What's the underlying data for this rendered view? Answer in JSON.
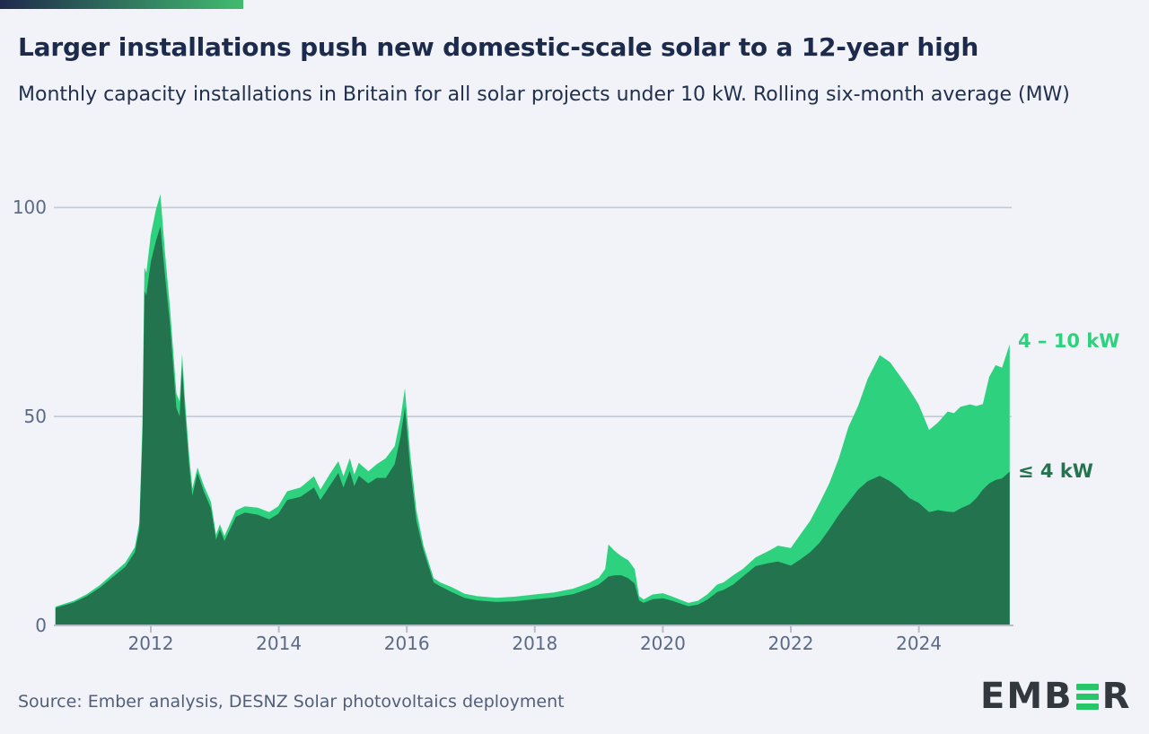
{
  "page": {
    "background_color": "#f1f3f8"
  },
  "header": {
    "accent_bar_gradient": [
      "#1f2a4c",
      "#41bc6f"
    ],
    "title": "Larger installations push new domestic-scale solar to a 12-year high",
    "subtitle": "Monthly capacity installations in Britain for all solar projects under 10 kW. Rolling six-month average (MW)"
  },
  "footer": {
    "source": "Source: Ember analysis, DESNZ Solar photovoltaics deployment",
    "logo": {
      "prefix": "EMB",
      "suffix": "R",
      "bar_e_color": "#25c768",
      "text_color": "#33383e"
    }
  },
  "chart_data": {
    "type": "area",
    "stacked": true,
    "title": "Larger installations push new domestic-scale solar to a 12-year high",
    "subtitle": "Monthly capacity installations in Britain for all solar projects under 10 kW. Rolling six-month average (MW)",
    "unit": "MW",
    "xlabel": "",
    "ylabel": "MW",
    "xlim": [
      2010.51,
      2025.42
    ],
    "ylim": [
      0,
      105
    ],
    "x_ticks": [
      "2012",
      "2014",
      "2016",
      "2018",
      "2020",
      "2022",
      "2024"
    ],
    "x_tick_years": [
      2012,
      2014,
      2016,
      2018,
      2020,
      2022,
      2024
    ],
    "y_ticks": [
      0,
      50,
      100
    ],
    "grid": "horizontal",
    "legend_position": "right-of-plot",
    "colors": {
      "grid_line": "#c3cad6",
      "axis_line": "#b6bdcb",
      "tick_text": "#5b6a86"
    },
    "x": [
      2010.51,
      2010.8,
      2011.0,
      2011.2,
      2011.4,
      2011.6,
      2011.75,
      2011.82,
      2011.87,
      2011.9,
      2011.93,
      2012.0,
      2012.08,
      2012.15,
      2012.22,
      2012.3,
      2012.4,
      2012.45,
      2012.49,
      2012.53,
      2012.6,
      2012.65,
      2012.73,
      2012.83,
      2012.94,
      2013.02,
      2013.08,
      2013.15,
      2013.33,
      2013.47,
      2013.67,
      2013.85,
      2013.99,
      2014.13,
      2014.34,
      2014.55,
      2014.65,
      2014.8,
      2014.93,
      2015.01,
      2015.11,
      2015.18,
      2015.25,
      2015.4,
      2015.53,
      2015.67,
      2015.81,
      2015.9,
      2015.97,
      2016.05,
      2016.15,
      2016.26,
      2016.42,
      2016.52,
      2016.7,
      2016.9,
      2017.1,
      2017.4,
      2017.7,
      2018.0,
      2018.3,
      2018.6,
      2018.85,
      2019.0,
      2019.1,
      2019.15,
      2019.25,
      2019.35,
      2019.46,
      2019.56,
      2019.63,
      2019.7,
      2019.84,
      2020.0,
      2020.13,
      2020.28,
      2020.4,
      2020.55,
      2020.7,
      2020.85,
      2020.95,
      2021.1,
      2021.25,
      2021.45,
      2021.65,
      2021.8,
      2022.0,
      2022.15,
      2022.3,
      2022.45,
      2022.6,
      2022.75,
      2022.9,
      2023.05,
      2023.2,
      2023.39,
      2023.55,
      2023.7,
      2023.85,
      2024.0,
      2024.16,
      2024.3,
      2024.45,
      2024.55,
      2024.65,
      2024.8,
      2024.9,
      2025.0,
      2025.1,
      2025.2,
      2025.3,
      2025.42
    ],
    "series": [
      {
        "name": "≤ 4 kW",
        "color": "#23744e",
        "stacking": "base",
        "values": [
          4.2,
          5.5,
          7.0,
          9.0,
          11.5,
          14.0,
          17.5,
          23.0,
          45.0,
          80.0,
          79.0,
          87.0,
          92.0,
          95.5,
          84.0,
          72.0,
          52.0,
          50.0,
          62.0,
          52.0,
          38.0,
          31.0,
          36.5,
          32.0,
          28.0,
          20.5,
          23.0,
          20.2,
          26.0,
          27.0,
          26.5,
          25.4,
          26.7,
          30.0,
          30.8,
          33.0,
          30.0,
          33.5,
          36.5,
          33.0,
          37.0,
          33.3,
          35.8,
          34.0,
          35.3,
          35.3,
          38.6,
          45.0,
          52.2,
          38.0,
          25.0,
          18.0,
          10.3,
          9.4,
          8.0,
          6.6,
          6.0,
          5.6,
          5.8,
          6.3,
          6.7,
          7.5,
          8.8,
          9.8,
          11.0,
          11.7,
          12.0,
          12.0,
          11.3,
          10.0,
          6.0,
          5.4,
          6.3,
          6.5,
          6.0,
          5.2,
          4.6,
          5.0,
          6.2,
          8.0,
          8.5,
          9.8,
          11.7,
          14.2,
          14.9,
          15.3,
          14.3,
          15.8,
          17.5,
          19.8,
          23.0,
          26.5,
          29.5,
          32.5,
          34.5,
          35.8,
          34.5,
          32.8,
          30.5,
          29.3,
          27.1,
          27.6,
          27.2,
          27.1,
          28.0,
          29.0,
          30.5,
          32.5,
          34.0,
          34.8,
          35.2,
          36.8
        ]
      },
      {
        "name": "4 – 10 kW",
        "color": "#2ed17e",
        "stacking": "increment",
        "values": [
          0.3,
          0.4,
          0.5,
          0.6,
          0.8,
          1.0,
          1.2,
          1.5,
          3.5,
          5.7,
          5.4,
          6.5,
          7.5,
          7.7,
          5.5,
          4.0,
          3.5,
          3.6,
          3.0,
          2.8,
          2.5,
          1.8,
          1.3,
          1.4,
          1.6,
          1.2,
          1.2,
          1.2,
          1.5,
          1.5,
          1.7,
          1.7,
          1.8,
          2.1,
          2.2,
          2.7,
          2.5,
          2.8,
          2.8,
          2.7,
          3.0,
          2.8,
          3.1,
          2.9,
          3.3,
          4.7,
          4.3,
          4.5,
          4.6,
          3.5,
          2.5,
          1.2,
          1.0,
          0.9,
          1.2,
          1.0,
          1.0,
          1.0,
          1.1,
          1.1,
          1.2,
          1.3,
          1.4,
          1.6,
          2.5,
          7.7,
          5.8,
          4.6,
          4.3,
          3.5,
          1.0,
          0.8,
          1.1,
          1.2,
          1.0,
          0.9,
          0.8,
          0.9,
          1.3,
          1.8,
          1.8,
          2.2,
          1.8,
          2.1,
          2.9,
          3.8,
          4.2,
          6.0,
          7.5,
          9.5,
          11.0,
          13.5,
          18.0,
          20.0,
          24.5,
          28.9,
          28.5,
          27.0,
          26.0,
          23.5,
          19.7,
          21.0,
          24.0,
          23.7,
          24.3,
          23.9,
          22.0,
          20.5,
          25.5,
          27.5,
          26.5,
          30.5
        ]
      }
    ]
  }
}
